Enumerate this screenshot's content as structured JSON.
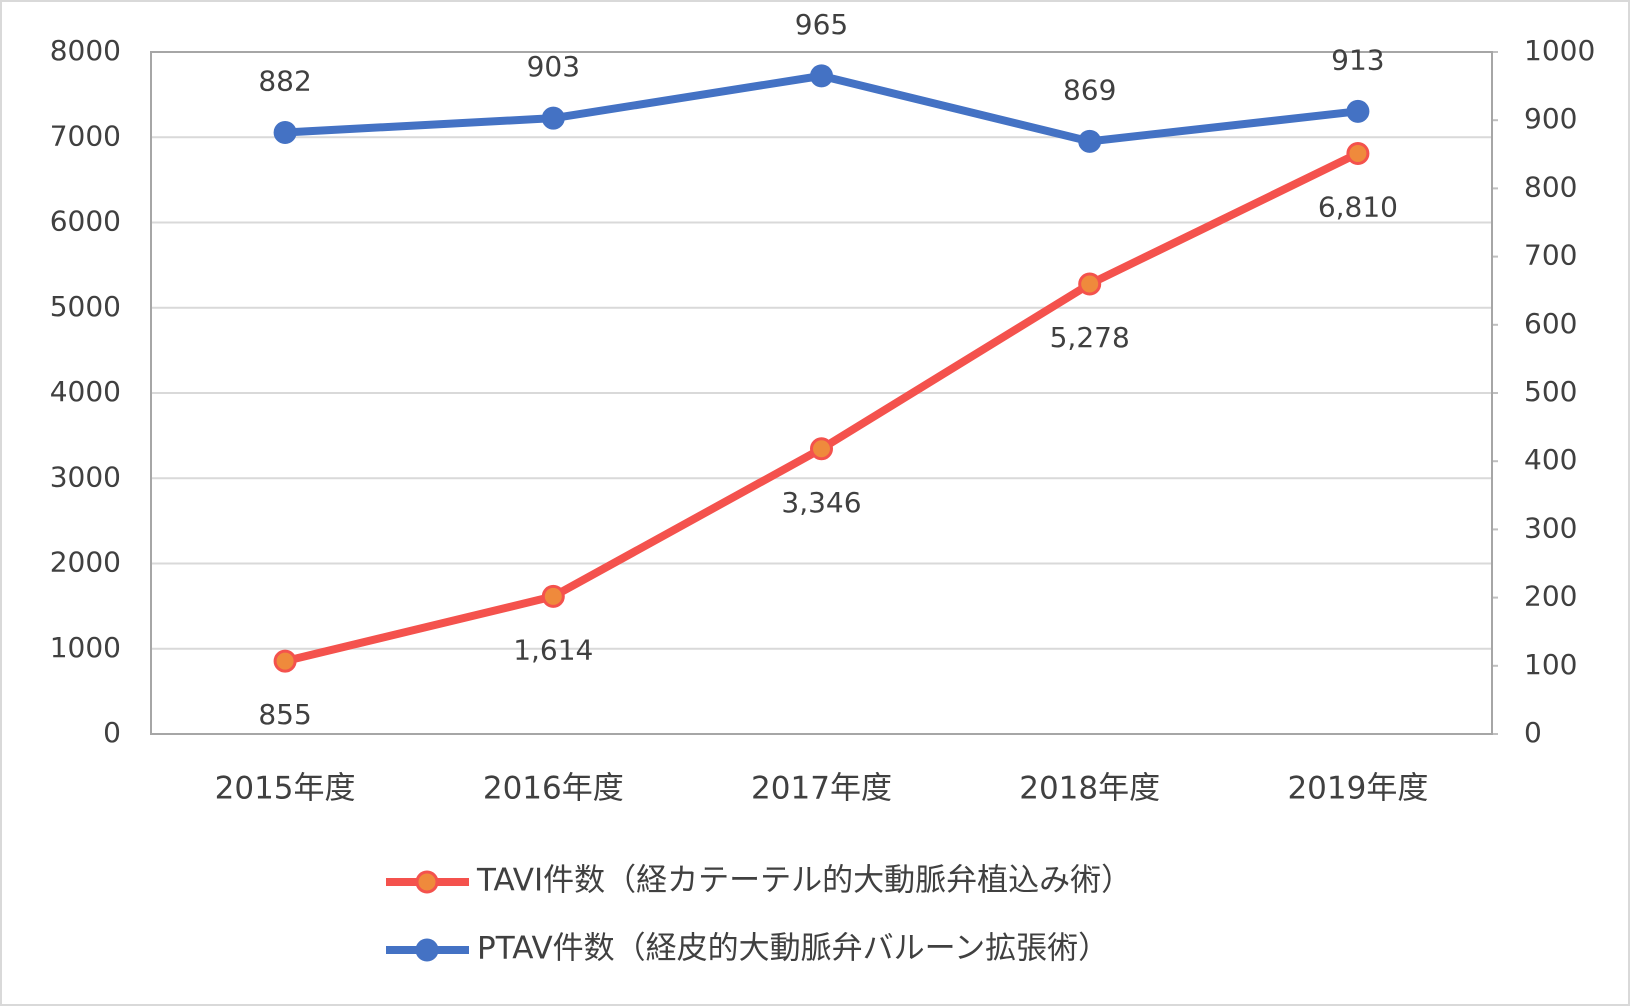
{
  "chart_data": {
    "type": "line",
    "categories": [
      "2015年度",
      "2016年度",
      "2017年度",
      "2018年度",
      "2019年度"
    ],
    "series": [
      {
        "name": "TAVI件数（経カテーテル的大動脈弁植込み術）",
        "color": "#f4524d",
        "marker_color": "#ef8a3c",
        "values": [
          855,
          1614,
          3346,
          5278,
          6810
        ],
        "value_labels": [
          "855",
          "1,614",
          "3,346",
          "5,278",
          "6,810"
        ]
      },
      {
        "name": "PTAV件数（経皮的大動脈弁バルーン拡張術）",
        "color": "#4472c4",
        "marker_color": "#4472c4",
        "axis": "y2",
        "values": [
          882,
          903,
          965,
          869,
          913
        ]
      }
    ],
    "ylim": [
      0,
      8000
    ],
    "yticks": [
      0,
      1000,
      2000,
      3000,
      4000,
      5000,
      6000,
      7000,
      8000
    ],
    "y2lim": [
      0,
      1000
    ],
    "y2ticks": [
      0,
      100,
      200,
      300,
      400,
      500,
      600,
      700,
      800,
      900,
      1000
    ],
    "grid": true,
    "legend": "bottom"
  }
}
